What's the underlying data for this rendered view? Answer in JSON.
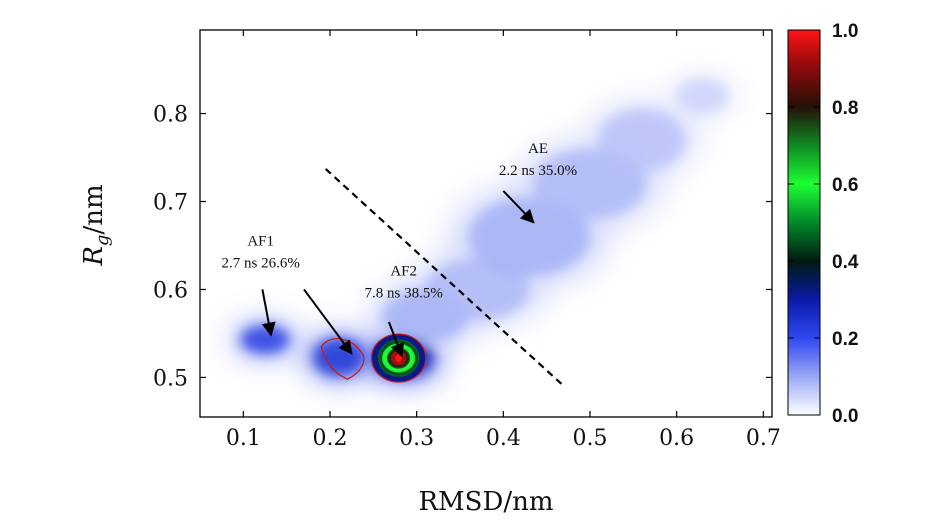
{
  "chart_data": {
    "type": "heatmap",
    "title": "",
    "xlabel": "RMSD/nm",
    "ylabel_main": "R",
    "ylabel_sub": "g",
    "ylabel_unit": "/nm",
    "xlim": [
      0.05,
      0.71
    ],
    "ylim": [
      0.455,
      0.895
    ],
    "x_ticks": [
      0.1,
      0.2,
      0.3,
      0.4,
      0.5,
      0.6,
      0.7
    ],
    "x_tick_labels": [
      "0.1",
      "0.2",
      "0.3",
      "0.4",
      "0.5",
      "0.6",
      "0.7"
    ],
    "y_ticks": [
      0.5,
      0.6,
      0.7,
      0.8
    ],
    "y_tick_labels": [
      "0.5",
      "0.6",
      "0.7",
      "0.8"
    ],
    "colorbar": {
      "min": 0.0,
      "max": 1.0,
      "ticks": [
        "0.0",
        "0.2",
        "0.4",
        "0.6",
        "0.8",
        "1.0"
      ],
      "tick_values": [
        0.0,
        0.2,
        0.4,
        0.6,
        0.8,
        1.0
      ],
      "stops": [
        {
          "v": 0.0,
          "color": "#ffffff"
        },
        {
          "v": 0.1,
          "color": "#9aa8f5"
        },
        {
          "v": 0.2,
          "color": "#2f47f0"
        },
        {
          "v": 0.3,
          "color": "#0a1aa8"
        },
        {
          "v": 0.4,
          "color": "#001a10"
        },
        {
          "v": 0.5,
          "color": "#008a2a"
        },
        {
          "v": 0.6,
          "color": "#1cff33"
        },
        {
          "v": 0.7,
          "color": "#0f8a22"
        },
        {
          "v": 0.8,
          "color": "#241008"
        },
        {
          "v": 0.9,
          "color": "#8a0a0a"
        },
        {
          "v": 1.0,
          "color": "#ff1414"
        }
      ]
    },
    "density_blobs": [
      {
        "x": 0.125,
        "y": 0.543,
        "rx": 0.028,
        "ry": 0.016,
        "v": 0.22
      },
      {
        "x": 0.21,
        "y": 0.523,
        "rx": 0.03,
        "ry": 0.022,
        "v": 0.24
      },
      {
        "x": 0.285,
        "y": 0.522,
        "rx": 0.035,
        "ry": 0.022,
        "v": 0.3
      },
      {
        "x": 0.31,
        "y": 0.57,
        "rx": 0.05,
        "ry": 0.03,
        "v": 0.09
      },
      {
        "x": 0.37,
        "y": 0.6,
        "rx": 0.06,
        "ry": 0.035,
        "v": 0.08
      },
      {
        "x": 0.43,
        "y": 0.66,
        "rx": 0.07,
        "ry": 0.045,
        "v": 0.09
      },
      {
        "x": 0.5,
        "y": 0.72,
        "rx": 0.065,
        "ry": 0.04,
        "v": 0.08
      },
      {
        "x": 0.56,
        "y": 0.77,
        "rx": 0.05,
        "ry": 0.035,
        "v": 0.07
      },
      {
        "x": 0.63,
        "y": 0.82,
        "rx": 0.03,
        "ry": 0.02,
        "v": 0.05
      }
    ],
    "peak": {
      "x": 0.278,
      "y": 0.522,
      "v": 1.0
    },
    "divider_line": {
      "x1": 0.195,
      "y1": 0.737,
      "x2": 0.47,
      "y2": 0.49
    },
    "annotations": [
      {
        "id": "ae",
        "lines": [
          "AE",
          "2.2 ns  35.0%"
        ],
        "text_x": 0.44,
        "text_y": 0.755,
        "arrows": [
          {
            "from": [
              0.4,
              0.712
            ],
            "to": [
              0.435,
              0.676
            ]
          }
        ]
      },
      {
        "id": "af1",
        "lines": [
          "AF1",
          "2.7 ns  26.6%"
        ],
        "text_x": 0.12,
        "text_y": 0.65,
        "arrows": [
          {
            "from": [
              0.122,
              0.6
            ],
            "to": [
              0.132,
              0.548
            ]
          },
          {
            "from": [
              0.17,
              0.6
            ],
            "to": [
              0.225,
              0.527
            ]
          }
        ]
      },
      {
        "id": "af2",
        "lines": [
          "AF2",
          "7.8 ns  38.5%"
        ],
        "text_x": 0.285,
        "text_y": 0.616,
        "arrows": [
          {
            "from": [
              0.268,
              0.563
            ],
            "to": [
              0.283,
              0.524
            ]
          }
        ]
      }
    ]
  }
}
